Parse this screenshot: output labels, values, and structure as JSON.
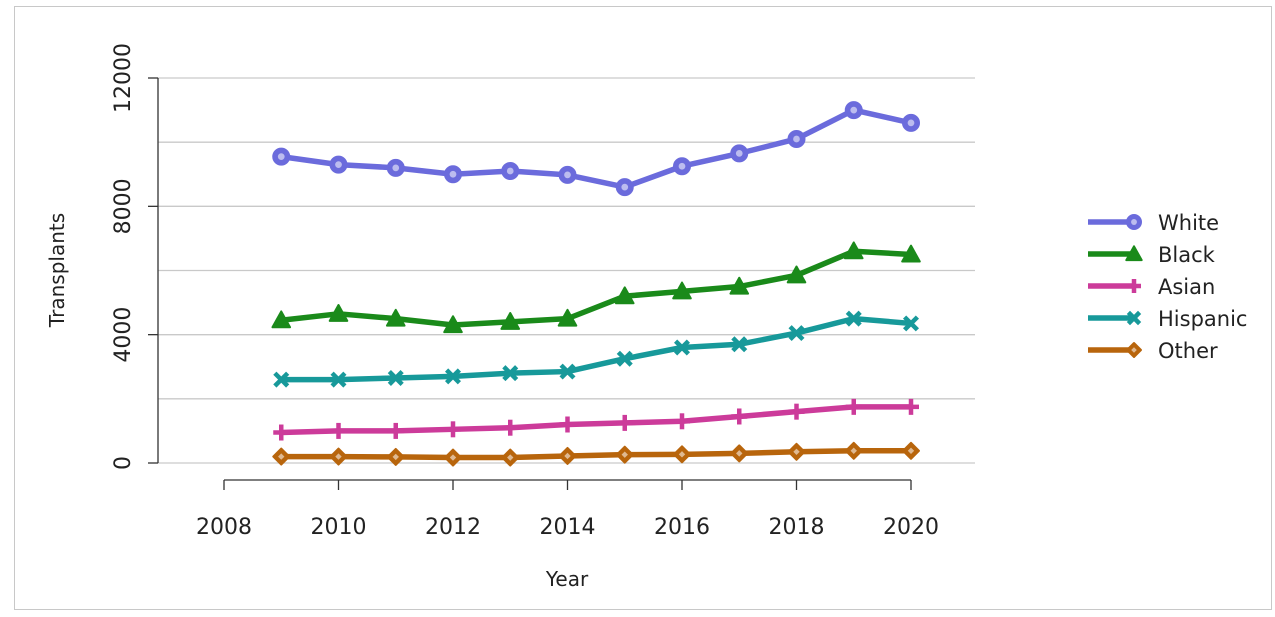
{
  "chart_data": {
    "type": "line",
    "xlabel": "Year",
    "ylabel": "Transplants",
    "xlim": [
      2007.8,
      2020.6
    ],
    "ylim": [
      0,
      12000
    ],
    "xticks": [
      "2008",
      "2010",
      "2012",
      "2014",
      "2016",
      "2018",
      "2020"
    ],
    "yticks": [
      "0",
      "4000",
      "8000",
      "12000"
    ],
    "grid": "horizontal",
    "legend_position": "right",
    "x": [
      2009,
      2010,
      2011,
      2012,
      2013,
      2014,
      2015,
      2016,
      2017,
      2018,
      2019,
      2020
    ],
    "series": [
      {
        "name": "White",
        "color": "#6b6bdc",
        "marker": "circle",
        "values": [
          9550,
          9300,
          9200,
          9000,
          9100,
          8980,
          8600,
          9250,
          9650,
          10100,
          11000,
          10600
        ]
      },
      {
        "name": "Black",
        "color": "#1a8a1a",
        "marker": "triangle",
        "values": [
          4450,
          4650,
          4500,
          4300,
          4400,
          4500,
          5200,
          5350,
          5500,
          5850,
          6600,
          6500
        ]
      },
      {
        "name": "Asian",
        "color": "#cc3b9a",
        "marker": "plus",
        "values": [
          950,
          1000,
          1000,
          1050,
          1100,
          1200,
          1250,
          1300,
          1450,
          1600,
          1750,
          1750
        ]
      },
      {
        "name": "Hispanic",
        "color": "#17999a",
        "marker": "x",
        "values": [
          2600,
          2600,
          2650,
          2700,
          2800,
          2850,
          3250,
          3600,
          3700,
          4050,
          4500,
          4350
        ]
      },
      {
        "name": "Other",
        "color": "#b8650c",
        "marker": "diamond",
        "values": [
          200,
          200,
          190,
          170,
          170,
          220,
          260,
          270,
          300,
          350,
          380,
          380
        ]
      }
    ]
  }
}
